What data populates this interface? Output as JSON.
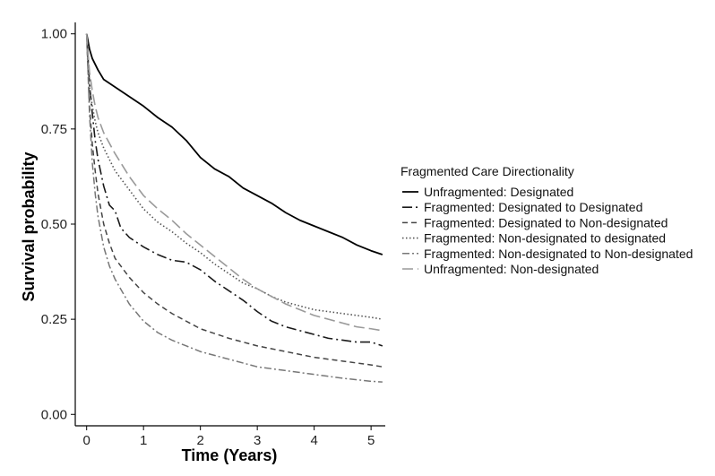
{
  "chart_data": {
    "type": "line",
    "title": "",
    "xlabel": "Time (Years)",
    "ylabel": "Survival probability",
    "xlim": [
      -0.2,
      5.25
    ],
    "ylim": [
      -0.03,
      1.03
    ],
    "x_ticks": [
      0,
      1,
      2,
      3,
      4,
      5
    ],
    "x_tick_labels": [
      "0",
      "1",
      "2",
      "3",
      "4",
      "5"
    ],
    "y_ticks": [
      0.0,
      0.25,
      0.5,
      0.75,
      1.0
    ],
    "y_tick_labels": [
      "0.00",
      "0.25",
      "0.50",
      "0.75",
      "1.00"
    ],
    "grid": false,
    "legend": {
      "title": "Fragmented Care Directionality",
      "placement": "right"
    },
    "series": [
      {
        "name": "Unfragmented: Designated",
        "color": "#000000",
        "dash": "solid",
        "x": [
          0,
          0.05,
          0.1,
          0.2,
          0.3,
          0.5,
          0.75,
          1.0,
          1.25,
          1.5,
          1.75,
          2.0,
          2.25,
          2.5,
          2.75,
          3.0,
          3.25,
          3.5,
          3.75,
          4.0,
          4.25,
          4.5,
          4.75,
          5.0,
          5.2
        ],
        "y": [
          1.0,
          0.96,
          0.935,
          0.905,
          0.88,
          0.86,
          0.835,
          0.81,
          0.78,
          0.755,
          0.72,
          0.675,
          0.645,
          0.625,
          0.595,
          0.575,
          0.555,
          0.53,
          0.51,
          0.495,
          0.48,
          0.465,
          0.445,
          0.43,
          0.42
        ]
      },
      {
        "name": "Fragmented: Designated to Designated",
        "color": "#1a1a1a",
        "dash": "longdash",
        "x": [
          0,
          0.05,
          0.1,
          0.15,
          0.2,
          0.3,
          0.4,
          0.5,
          0.6,
          0.75,
          1.0,
          1.25,
          1.5,
          1.75,
          2.0,
          2.25,
          2.5,
          2.75,
          3.0,
          3.25,
          3.5,
          3.75,
          4.0,
          4.25,
          4.5,
          4.75,
          5.0,
          5.2
        ],
        "y": [
          1.0,
          0.87,
          0.79,
          0.72,
          0.67,
          0.6,
          0.55,
          0.535,
          0.49,
          0.465,
          0.44,
          0.42,
          0.405,
          0.4,
          0.38,
          0.35,
          0.325,
          0.3,
          0.27,
          0.245,
          0.23,
          0.22,
          0.21,
          0.2,
          0.195,
          0.19,
          0.19,
          0.18
        ]
      },
      {
        "name": "Fragmented: Designated to Non-designated",
        "color": "#444444",
        "dash": "dashed",
        "x": [
          0,
          0.05,
          0.1,
          0.15,
          0.2,
          0.3,
          0.4,
          0.5,
          0.75,
          1.0,
          1.25,
          1.5,
          1.75,
          2.0,
          2.5,
          3.0,
          3.5,
          4.0,
          4.5,
          5.0,
          5.2
        ],
        "y": [
          1.0,
          0.81,
          0.71,
          0.64,
          0.58,
          0.5,
          0.45,
          0.41,
          0.36,
          0.32,
          0.29,
          0.265,
          0.245,
          0.225,
          0.2,
          0.18,
          0.165,
          0.15,
          0.14,
          0.13,
          0.125
        ]
      },
      {
        "name": "Fragmented: Non-designated to designated",
        "color": "#555555",
        "dash": "dotted",
        "x": [
          0,
          0.05,
          0.1,
          0.15,
          0.2,
          0.3,
          0.5,
          0.75,
          1.0,
          1.25,
          1.5,
          1.75,
          2.0,
          2.25,
          2.5,
          2.75,
          3.0,
          3.25,
          3.5,
          3.75,
          4.0,
          4.25,
          4.5,
          4.75,
          5.0,
          5.2
        ],
        "y": [
          1.0,
          0.86,
          0.81,
          0.77,
          0.74,
          0.7,
          0.64,
          0.59,
          0.54,
          0.505,
          0.48,
          0.45,
          0.425,
          0.395,
          0.37,
          0.345,
          0.33,
          0.31,
          0.295,
          0.285,
          0.275,
          0.27,
          0.265,
          0.26,
          0.255,
          0.25
        ]
      },
      {
        "name": "Fragmented: Non-designated to Non-designated",
        "color": "#777777",
        "dash": "dashdot",
        "x": [
          0,
          0.05,
          0.1,
          0.15,
          0.2,
          0.3,
          0.4,
          0.5,
          0.75,
          1.0,
          1.25,
          1.5,
          1.75,
          2.0,
          2.5,
          3.0,
          3.5,
          4.0,
          4.5,
          5.0,
          5.2
        ],
        "y": [
          1.0,
          0.79,
          0.66,
          0.58,
          0.52,
          0.44,
          0.39,
          0.355,
          0.29,
          0.245,
          0.215,
          0.195,
          0.18,
          0.165,
          0.145,
          0.125,
          0.115,
          0.105,
          0.095,
          0.087,
          0.085
        ]
      },
      {
        "name": "Unfragmented: Non-designated",
        "color": "#9a9a9a",
        "dash": "longdash2",
        "x": [
          0,
          0.05,
          0.1,
          0.15,
          0.2,
          0.3,
          0.5,
          0.75,
          1.0,
          1.25,
          1.5,
          1.75,
          2.0,
          2.25,
          2.5,
          2.75,
          3.0,
          3.25,
          3.5,
          3.75,
          4.0,
          4.25,
          4.5,
          4.75,
          5.0,
          5.2
        ],
        "y": [
          1.0,
          0.9,
          0.85,
          0.81,
          0.78,
          0.74,
          0.685,
          0.625,
          0.575,
          0.54,
          0.51,
          0.475,
          0.445,
          0.415,
          0.385,
          0.355,
          0.33,
          0.31,
          0.29,
          0.275,
          0.26,
          0.25,
          0.24,
          0.23,
          0.225,
          0.22
        ]
      }
    ]
  }
}
